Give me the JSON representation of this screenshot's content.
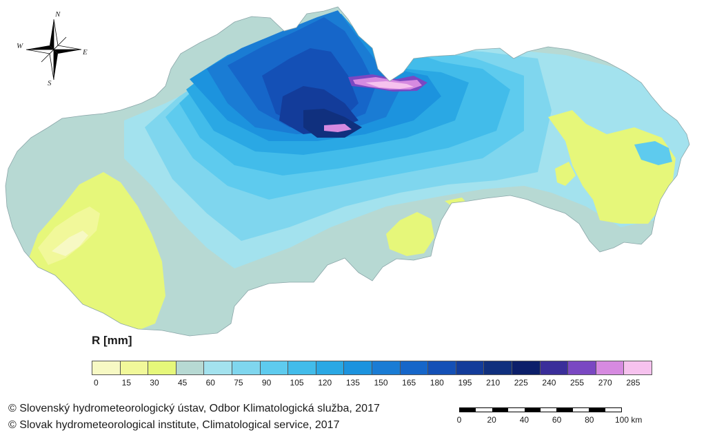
{
  "compass": {
    "north": "N",
    "east": "E",
    "south": "S",
    "west": "W",
    "icon": "compass-rose-icon"
  },
  "legend": {
    "title": "R [mm]",
    "tick_labels": [
      "0",
      "15",
      "30",
      "45",
      "60",
      "75",
      "90",
      "105",
      "120",
      "135",
      "150",
      "165",
      "180",
      "195",
      "210",
      "225",
      "240",
      "255",
      "270",
      "285"
    ],
    "colors": [
      "#f7f9c4",
      "#f1f89a",
      "#e6f77a",
      "#b7d9d3",
      "#a3e2ee",
      "#7fd6ee",
      "#5ecbee",
      "#42bcea",
      "#2aa8e4",
      "#1c93de",
      "#1a7cd4",
      "#1666c9",
      "#1450b6",
      "#133c9a",
      "#10307e",
      "#0c1f6a",
      "#3a2e9a",
      "#7a48c2",
      "#d68ae0",
      "#f6c2ee"
    ]
  },
  "scale": {
    "labels": [
      "0",
      "20",
      "40",
      "60",
      "80",
      "100 km"
    ]
  },
  "credits": {
    "slovak": "© Slovenský hydrometeorologický ústav, Odbor Klimatologická služba, 2017",
    "english": "© Slovak hydrometeorological institute, Climatological service, 2017"
  }
}
